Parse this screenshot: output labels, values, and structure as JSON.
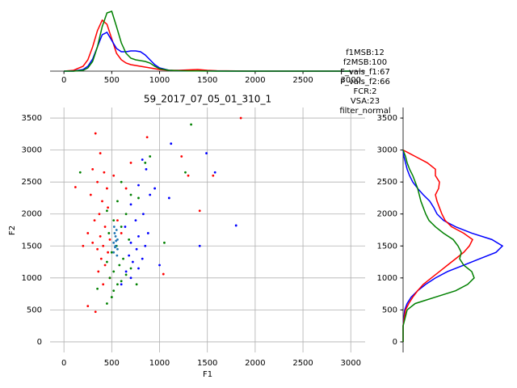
{
  "chart_data": [
    {
      "type": "line",
      "x": [
        0,
        100,
        200,
        250,
        300,
        350,
        400,
        450,
        500,
        550,
        600,
        650,
        700,
        750,
        800,
        850,
        900,
        950,
        1000,
        1100,
        1200,
        1300,
        1400,
        1500,
        1600,
        1800,
        2000,
        3000
      ],
      "series": [
        {
          "color": "#ff0000",
          "values": [
            0,
            1,
            6,
            14,
            30,
            50,
            63,
            58,
            40,
            22,
            14,
            10,
            8,
            7,
            6,
            5,
            4,
            3,
            2,
            1,
            1,
            1.5,
            2,
            1,
            0.5,
            0.3,
            0,
            0
          ]
        },
        {
          "color": "#0000ff",
          "values": [
            0,
            0,
            2,
            6,
            15,
            30,
            45,
            48,
            38,
            28,
            24,
            24,
            25,
            25,
            24,
            20,
            14,
            8,
            4,
            1,
            0.5,
            0.3,
            0.3,
            0.2,
            0.1,
            0,
            0,
            0
          ]
        },
        {
          "color": "#008000",
          "values": [
            0,
            0,
            1,
            4,
            12,
            30,
            55,
            72,
            74,
            55,
            35,
            22,
            16,
            14,
            13,
            12,
            10,
            6,
            3,
            1,
            0.5,
            0.3,
            0.2,
            0.1,
            0,
            0,
            0,
            0
          ]
        }
      ],
      "xlim": [
        -145,
        3150
      ],
      "ylim": [
        0,
        80
      ],
      "xticks": [
        0,
        500,
        1000,
        1500,
        2000,
        2500,
        3000
      ]
    },
    {
      "type": "scatter",
      "title": "59_2017_07_05_01_310_1",
      "x_label": "F1",
      "y_label": "F2",
      "annotation": [
        "f1MSB:12",
        "f2MSB:100",
        "F_vals_f1:67",
        "F_vals_f2:66",
        "FCR:2",
        "VSA:23",
        "filter_normal"
      ],
      "series": [
        {
          "color": "#ff0000",
          "x": [
            330,
            380,
            300,
            420,
            350,
            450,
            280,
            400,
            460,
            370,
            320,
            430,
            250,
            380,
            480,
            300,
            410,
            350,
            460,
            390,
            430,
            360,
            480,
            410,
            250,
            330,
            120,
            1850,
            1230,
            1300,
            1420,
            1560,
            870,
            650,
            700,
            600,
            560,
            1040,
            200,
            520
          ],
          "y": [
            3260,
            2950,
            2700,
            2650,
            2500,
            2400,
            2300,
            2200,
            2100,
            2000,
            1900,
            1800,
            1700,
            1650,
            1600,
            1550,
            1500,
            1450,
            1400,
            1300,
            1200,
            1100,
            1000,
            900,
            560,
            470,
            2420,
            3500,
            2900,
            2600,
            2050,
            2600,
            3200,
            2400,
            2800,
            1700,
            1900,
            1060,
            1500,
            2600
          ]
        },
        {
          "color": "#008000",
          "x": [
            450,
            500,
            520,
            350,
            560,
            600,
            480,
            650,
            520,
            700,
            580,
            450,
            620,
            500,
            550,
            680,
            470,
            600,
            520,
            650,
            560,
            700,
            600,
            850,
            900,
            1330,
            1270,
            1050,
            760,
            780,
            170,
            450
          ],
          "y": [
            600,
            700,
            800,
            830,
            900,
            950,
            1000,
            1050,
            1100,
            1150,
            1200,
            1250,
            1300,
            1400,
            1500,
            1600,
            1700,
            1800,
            1900,
            2000,
            2200,
            2300,
            2500,
            2800,
            2900,
            3400,
            2650,
            1550,
            900,
            2250,
            2650,
            2050
          ]
        },
        {
          "color": "#0000ff",
          "x": [
            600,
            700,
            650,
            780,
            720,
            820,
            680,
            760,
            850,
            700,
            780,
            880,
            640,
            750,
            830,
            700,
            900,
            780,
            860,
            820,
            1120,
            1490,
            1580,
            1420,
            1800,
            1100,
            950,
            1000
          ],
          "y": [
            900,
            1000,
            1100,
            1150,
            1250,
            1300,
            1350,
            1450,
            1500,
            1550,
            1650,
            1700,
            1800,
            1900,
            2000,
            2150,
            2300,
            2450,
            2700,
            2850,
            3100,
            2950,
            2650,
            1500,
            1820,
            2250,
            2400,
            1200
          ]
        },
        {
          "color": "#1f77b4",
          "x": [
            520,
            540,
            560,
            530,
            550,
            520,
            560,
            540,
            525,
            555,
            545,
            535
          ],
          "y": [
            1400,
            1500,
            1600,
            1700,
            1750,
            1550,
            1450,
            1650,
            1800,
            1350,
            1580,
            1480
          ]
        }
      ],
      "xlim": [
        -145,
        3150
      ],
      "ylim": [
        -165,
        3665
      ],
      "xticks": [
        0,
        500,
        1000,
        1500,
        2000,
        2500,
        3000
      ],
      "yticks": [
        0,
        500,
        1000,
        1500,
        2000,
        2500,
        3000,
        3500
      ],
      "grid": true
    },
    {
      "type": "line",
      "y": [
        0,
        250,
        500,
        600,
        700,
        800,
        900,
        1000,
        1100,
        1200,
        1300,
        1400,
        1500,
        1600,
        1700,
        1800,
        1900,
        2000,
        2100,
        2200,
        2300,
        2400,
        2500,
        2600,
        2700,
        2800,
        2900,
        3000
      ],
      "series": [
        {
          "color": "#0000ff",
          "values": [
            0,
            0,
            2,
            5,
            10,
            18,
            28,
            40,
            55,
            75,
            95,
            115,
            123,
            110,
            85,
            65,
            50,
            42,
            38,
            33,
            25,
            18,
            12,
            8,
            5,
            3,
            1,
            0
          ]
        },
        {
          "color": "#ff0000",
          "values": [
            0,
            0,
            3,
            7,
            12,
            18,
            25,
            35,
            45,
            55,
            65,
            75,
            82,
            86,
            75,
            60,
            52,
            48,
            45,
            42,
            40,
            44,
            45,
            40,
            40,
            30,
            15,
            0
          ]
        },
        {
          "color": "#008000",
          "values": [
            0,
            0,
            5,
            15,
            40,
            65,
            80,
            88,
            85,
            75,
            70,
            72,
            68,
            62,
            50,
            40,
            32,
            28,
            25,
            22,
            20,
            18,
            15,
            12,
            8,
            5,
            3,
            0
          ]
        }
      ],
      "xlim": [
        0,
        130
      ],
      "ylim": [
        -165,
        3665
      ],
      "yticks": [
        0,
        500,
        1000,
        1500,
        2000,
        2500,
        3000,
        3500
      ]
    }
  ]
}
